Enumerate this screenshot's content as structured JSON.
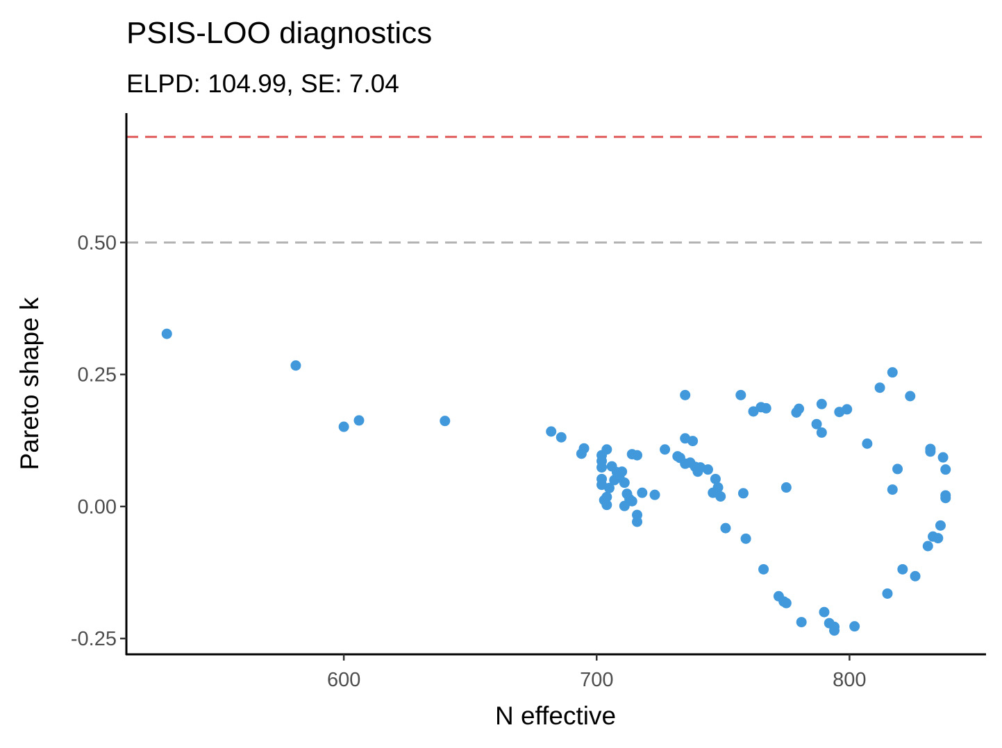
{
  "chart_data": {
    "type": "scatter",
    "title": "PSIS-LOO diagnostics",
    "subtitle": "ELPD: 104.99, SE: 7.04",
    "xlabel": "N effective",
    "ylabel": "Pareto shape k",
    "xlim": [
      514,
      854
    ],
    "ylim": [
      -0.28,
      0.745
    ],
    "x_ticks": [
      600,
      700,
      800
    ],
    "x_tick_labels": [
      "600",
      "700",
      "800"
    ],
    "y_ticks": [
      -0.25,
      0,
      0.25,
      0.5
    ],
    "y_tick_labels": [
      "-0.25",
      "0.00",
      "0.25",
      "0.50"
    ],
    "grid": false,
    "reference_lines": [
      {
        "y": 0.7,
        "color": "#e05a5a",
        "style": "dashed"
      },
      {
        "y": 0.5,
        "color": "#b3b3b3",
        "style": "dashed"
      }
    ],
    "point_color": "#4199dc",
    "points": [
      {
        "x": 530,
        "y": 0.327
      },
      {
        "x": 581,
        "y": 0.267
      },
      {
        "x": 600,
        "y": 0.151
      },
      {
        "x": 606,
        "y": 0.163
      },
      {
        "x": 640,
        "y": 0.162
      },
      {
        "x": 682,
        "y": 0.142
      },
      {
        "x": 686,
        "y": 0.131
      },
      {
        "x": 694,
        "y": 0.1
      },
      {
        "x": 695,
        "y": 0.11
      },
      {
        "x": 702,
        "y": 0.097
      },
      {
        "x": 702,
        "y": 0.086
      },
      {
        "x": 702,
        "y": 0.074
      },
      {
        "x": 702,
        "y": 0.052
      },
      {
        "x": 702,
        "y": 0.041
      },
      {
        "x": 703,
        "y": 0.012
      },
      {
        "x": 704,
        "y": 0.108
      },
      {
        "x": 704,
        "y": 0.018
      },
      {
        "x": 704,
        "y": 0.003
      },
      {
        "x": 705,
        "y": 0.035
      },
      {
        "x": 706,
        "y": 0.076
      },
      {
        "x": 707,
        "y": 0.05
      },
      {
        "x": 708,
        "y": 0.065
      },
      {
        "x": 709,
        "y": 0.055
      },
      {
        "x": 710,
        "y": 0.066
      },
      {
        "x": 711,
        "y": 0.045
      },
      {
        "x": 711,
        "y": 0.001
      },
      {
        "x": 712,
        "y": 0.024
      },
      {
        "x": 713,
        "y": 0.014
      },
      {
        "x": 714,
        "y": 0.01
      },
      {
        "x": 714,
        "y": 0.099
      },
      {
        "x": 716,
        "y": 0.097
      },
      {
        "x": 716,
        "y": -0.016
      },
      {
        "x": 716,
        "y": -0.029
      },
      {
        "x": 718,
        "y": 0.026
      },
      {
        "x": 723,
        "y": 0.022
      },
      {
        "x": 727,
        "y": 0.108
      },
      {
        "x": 732,
        "y": 0.095
      },
      {
        "x": 733,
        "y": 0.092
      },
      {
        "x": 735,
        "y": 0.081
      },
      {
        "x": 735,
        "y": 0.211
      },
      {
        "x": 735,
        "y": 0.129
      },
      {
        "x": 737,
        "y": 0.083
      },
      {
        "x": 738,
        "y": 0.124
      },
      {
        "x": 739,
        "y": 0.075
      },
      {
        "x": 740,
        "y": 0.066
      },
      {
        "x": 741,
        "y": 0.074
      },
      {
        "x": 744,
        "y": 0.07
      },
      {
        "x": 746,
        "y": 0.026
      },
      {
        "x": 747,
        "y": 0.052
      },
      {
        "x": 748,
        "y": 0.036
      },
      {
        "x": 749,
        "y": 0.019
      },
      {
        "x": 751,
        "y": -0.041
      },
      {
        "x": 757,
        "y": 0.211
      },
      {
        "x": 758,
        "y": 0.025
      },
      {
        "x": 759,
        "y": -0.061
      },
      {
        "x": 762,
        "y": 0.18
      },
      {
        "x": 765,
        "y": 0.188
      },
      {
        "x": 766,
        "y": -0.119
      },
      {
        "x": 767,
        "y": 0.186
      },
      {
        "x": 772,
        "y": -0.17
      },
      {
        "x": 774,
        "y": -0.18
      },
      {
        "x": 775,
        "y": -0.183
      },
      {
        "x": 775,
        "y": 0.036
      },
      {
        "x": 779,
        "y": 0.178
      },
      {
        "x": 780,
        "y": 0.185
      },
      {
        "x": 781,
        "y": -0.219
      },
      {
        "x": 787,
        "y": 0.156
      },
      {
        "x": 789,
        "y": 0.194
      },
      {
        "x": 789,
        "y": 0.14
      },
      {
        "x": 790,
        "y": -0.2
      },
      {
        "x": 792,
        "y": -0.221
      },
      {
        "x": 794,
        "y": -0.228
      },
      {
        "x": 794,
        "y": -0.235
      },
      {
        "x": 796,
        "y": 0.179
      },
      {
        "x": 799,
        "y": 0.184
      },
      {
        "x": 802,
        "y": -0.227
      },
      {
        "x": 807,
        "y": 0.119
      },
      {
        "x": 812,
        "y": 0.225
      },
      {
        "x": 815,
        "y": -0.165
      },
      {
        "x": 817,
        "y": 0.254
      },
      {
        "x": 817,
        "y": 0.032
      },
      {
        "x": 819,
        "y": 0.071
      },
      {
        "x": 821,
        "y": -0.119
      },
      {
        "x": 824,
        "y": 0.209
      },
      {
        "x": 826,
        "y": -0.132
      },
      {
        "x": 831,
        "y": -0.075
      },
      {
        "x": 832,
        "y": 0.109
      },
      {
        "x": 832,
        "y": 0.104
      },
      {
        "x": 833,
        "y": -0.057
      },
      {
        "x": 835,
        "y": -0.06
      },
      {
        "x": 836,
        "y": -0.036
      },
      {
        "x": 837,
        "y": 0.093
      },
      {
        "x": 838,
        "y": 0.07
      },
      {
        "x": 838,
        "y": 0.021
      },
      {
        "x": 838,
        "y": 0.016
      }
    ]
  }
}
